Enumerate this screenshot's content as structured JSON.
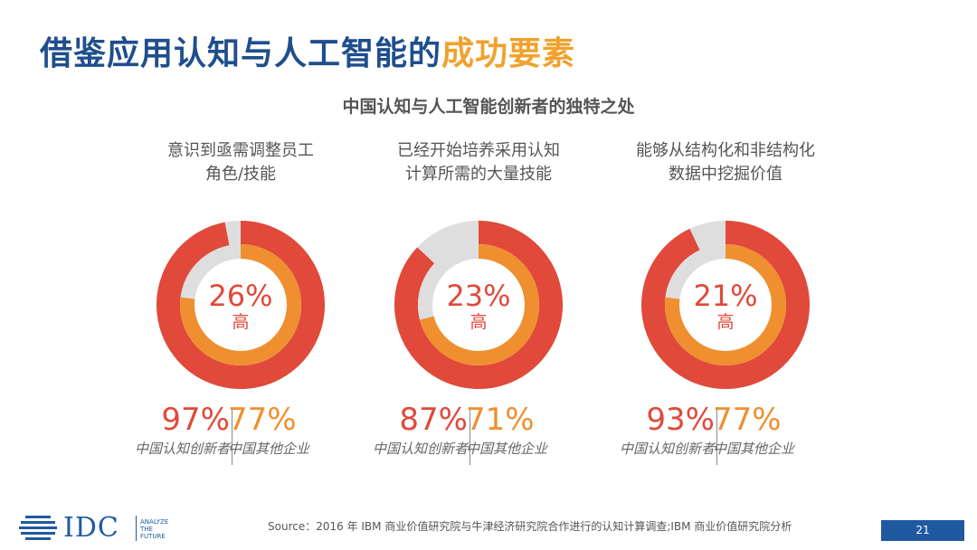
{
  "title": {
    "part1": "借鉴应用认知与人工智能的",
    "part2": "成功要素"
  },
  "subtitle": "中国认知与人工智能创新者的独特之处",
  "chart_data": [
    {
      "type": "pie",
      "title_lines": [
        "意识到亟需调整员工",
        "角色/技能"
      ],
      "center_value": "26%",
      "center_label": "高",
      "series": [
        {
          "name": "中国认知创新者",
          "label": "97%",
          "value": 97
        },
        {
          "name": "中国其他企业",
          "label": "77%",
          "value": 77
        }
      ]
    },
    {
      "type": "pie",
      "title_lines": [
        "已经开始培养采用认知",
        "计算所需的大量技能"
      ],
      "center_value": "23%",
      "center_label": "高",
      "series": [
        {
          "name": "中国认知创新者",
          "label": "87%",
          "value": 87
        },
        {
          "name": "中国其他企业",
          "label": "71%",
          "value": 71
        }
      ]
    },
    {
      "type": "pie",
      "title_lines": [
        "能够从结构化和非结构化",
        "数据中挖掘价值"
      ],
      "center_value": "21%",
      "center_label": "高",
      "series": [
        {
          "name": "中国认知创新者",
          "label": "93%",
          "value": 93
        },
        {
          "name": "中国其他企业",
          "label": "77%",
          "value": 77
        }
      ]
    }
  ],
  "colors": {
    "outer": "#e1493a",
    "inner": "#ef8f2f",
    "track": "#dedede"
  },
  "footer": {
    "logo_text": "IDC",
    "logo_tag": [
      "ANALYZE",
      "THE",
      "FUTURE"
    ],
    "source": "Source：2016 年 IBM 商业价值研究院与牛津经济研究院合作进行的认知计算调查;IBM 商业价值研究院分析",
    "page_number": "21"
  }
}
